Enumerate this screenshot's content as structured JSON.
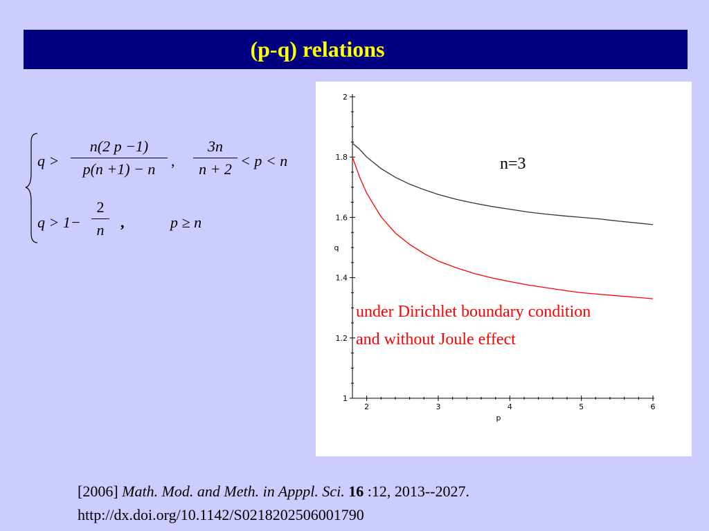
{
  "header": {
    "title": "(p-q) relations"
  },
  "formula": {
    "line1": {
      "lhs": "q >",
      "frac1_num": "n(2 p −1)",
      "frac1_den": "p(n +1) − n",
      "sep": ",",
      "frac2_num": "3n",
      "frac2_den": "n + 2",
      "cond": "< p < n"
    },
    "line2": {
      "lhs": "q > 1−",
      "frac_num": "2",
      "frac_den": "n",
      "sep": ",",
      "cond": "p ≥ n"
    }
  },
  "chart_data": {
    "type": "line",
    "xlabel": "p",
    "ylabel": "q",
    "xlim": [
      1.8,
      6
    ],
    "ylim": [
      1,
      2
    ],
    "xticks": [
      2,
      3,
      4,
      5,
      6
    ],
    "yticks": [
      1,
      1.2,
      1.4,
      1.6,
      1.8,
      2
    ],
    "ytick_labels": [
      "1",
      "1.2",
      "1.4",
      "1.6",
      "1.8",
      "2"
    ],
    "series": [
      {
        "color": "#333333",
        "x": [
          1.8,
          1.9,
          2.0,
          2.2,
          2.4,
          2.6,
          2.8,
          3.0,
          3.25,
          3.5,
          3.75,
          4.0,
          4.25,
          4.5,
          4.75,
          5.0,
          5.25,
          5.5,
          5.75,
          6.0
        ],
        "values": [
          1.846,
          1.826,
          1.8,
          1.762,
          1.733,
          1.71,
          1.692,
          1.676,
          1.66,
          1.647,
          1.636,
          1.627,
          1.618,
          1.611,
          1.605,
          1.6,
          1.595,
          1.588,
          1.582,
          1.576
        ]
      },
      {
        "color": "#ff0000",
        "x": [
          1.8,
          1.9,
          2.0,
          2.2,
          2.4,
          2.6,
          2.8,
          3.0,
          3.25,
          3.5,
          3.75,
          4.0,
          4.25,
          4.5,
          4.75,
          5.0,
          5.25,
          5.5,
          5.75,
          6.0
        ],
        "values": [
          1.8,
          1.734,
          1.68,
          1.602,
          1.548,
          1.51,
          1.48,
          1.455,
          1.433,
          1.414,
          1.399,
          1.387,
          1.376,
          1.367,
          1.358,
          1.35,
          1.345,
          1.34,
          1.335,
          1.33
        ]
      }
    ]
  },
  "annotations": {
    "n_label": "n=3",
    "red_line1": "under Dirichlet boundary condition",
    "red_line2": "and without Joule effect"
  },
  "citation": {
    "year": "[2006]",
    "journal": "Math. Mod. and Meth. in Apppl. Sci.",
    "volume": "16",
    "pages": ":12, 2013--2027.",
    "doi": "http://dx.doi.org/10.1142/S0218202506001790"
  }
}
